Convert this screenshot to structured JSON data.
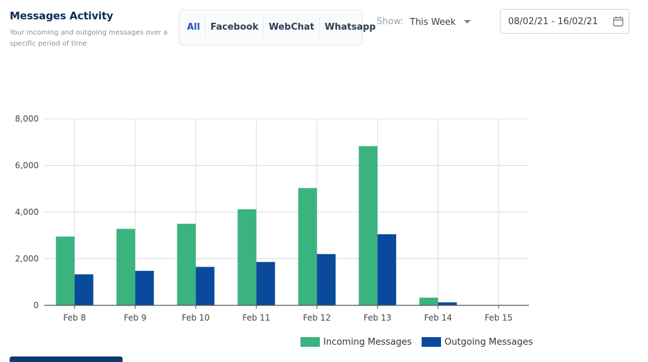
{
  "header": {
    "title": "Messages Activity",
    "subtitle": "Your incoming and outgoing messages over a specific period of time"
  },
  "tabs": [
    {
      "label": "All",
      "active": true
    },
    {
      "label": "Facebook",
      "active": false
    },
    {
      "label": "WebChat",
      "active": false
    },
    {
      "label": "Whatsapp",
      "active": false
    }
  ],
  "filter": {
    "show_label": "Show:",
    "selected": "This Week"
  },
  "date_range": {
    "value": "08/02/21 - 16/02/21",
    "icon": "calendar-icon"
  },
  "colors": {
    "incoming": "#3bb37f",
    "outgoing": "#0a4a9c",
    "active_tab": "#2352c6",
    "title": "#0f2d5a"
  },
  "chart_data": {
    "type": "bar",
    "categories": [
      "Feb 8",
      "Feb 9",
      "Feb 10",
      "Feb 11",
      "Feb 12",
      "Feb 13",
      "Feb 14",
      "Feb 15"
    ],
    "series": [
      {
        "name": "Incoming Messages",
        "values": [
          2950,
          3280,
          3500,
          4120,
          5030,
          6830,
          330,
          10
        ]
      },
      {
        "name": "Outgoing Messages",
        "values": [
          1330,
          1480,
          1650,
          1860,
          2200,
          3050,
          130,
          10
        ]
      }
    ],
    "ylim": [
      0,
      8000
    ],
    "yticks": [
      "0",
      "2,000",
      "4,000",
      "6,000",
      "8,000"
    ],
    "grid": true,
    "legend_position": "bottom-right"
  }
}
